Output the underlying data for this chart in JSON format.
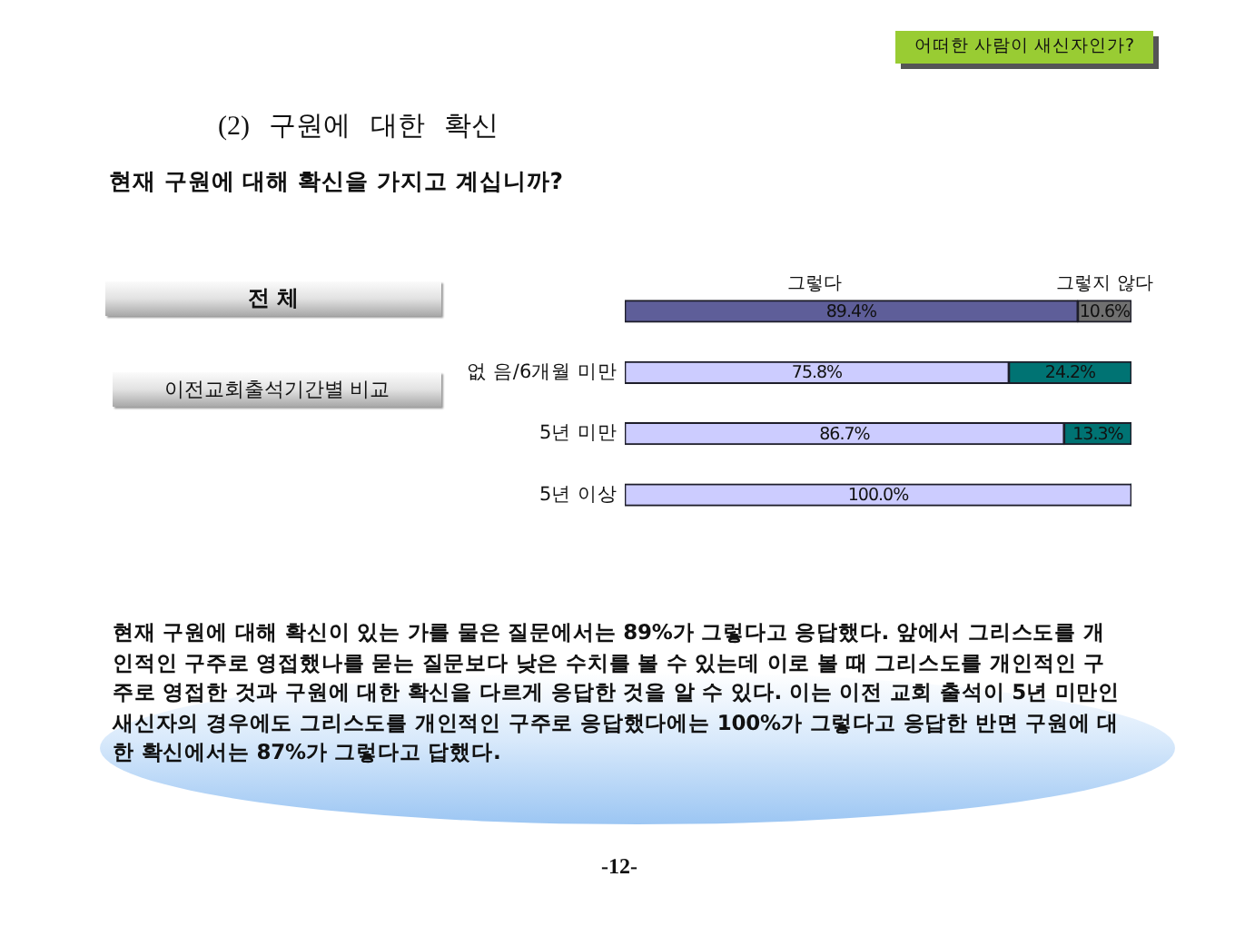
{
  "chart_data": {
    "type": "bar",
    "title": "(2) 구원에 대한 확신",
    "subtitle": "현재 구원에 대해 확신을 가지고 계십니까?",
    "categories": [
      null,
      "없 음/6개월 미만",
      "5년 미만",
      "5년 이상"
    ],
    "orientation": "horizontal",
    "stacked": true,
    "xlim": [
      0,
      100
    ],
    "tick_labels": "y",
    "legend": false,
    "series": [
      {
        "name": "그렇다",
        "colors": [
          "#5e5e99",
          "#ccccff",
          "#ccccff",
          "#ccccff"
        ],
        "values": [
          89.4,
          75.8,
          86.7,
          100.0
        ],
        "value_labels": [
          "89.4%",
          "75.8%",
          "86.7%",
          "100.0%"
        ]
      },
      {
        "name": "그렇지 않다",
        "colors": [
          "#707070",
          "#007373",
          "#007373",
          "#007373"
        ],
        "values": [
          10.6,
          24.2,
          13.3,
          0
        ],
        "value_labels": [
          "10.6%",
          "24.2%",
          "13.3%",
          null
        ]
      }
    ],
    "annotations": [
      "어떠한 사람이 새신자인가?",
      "전 체",
      "이전교회출석기간별 비교",
      "현재 구원에 대해 확신이 있는 가를 물은 질문에서는 89%가 그렇다고 응답했다. 앞에서 그리스도를 개인적인 구주로 영접했나를 묻는 질문보다 낮은 수치를 볼 수 있는데 이로 볼 때 그리스도를 개인적인 구주로 영접한 것과 구원에 대한 확신을 다르게 응답한 것을 알 수 있다. 이는 이전 교회 출석이 5년 미만인 새신자의 경우에도 그리스도를 개인적인 구주로 응답했다에는 100%가 그렇다고 응답한 반면 구원에 대한 확신에서는 87%가 그렇다고 답했다.",
      "-12-"
    ]
  }
}
